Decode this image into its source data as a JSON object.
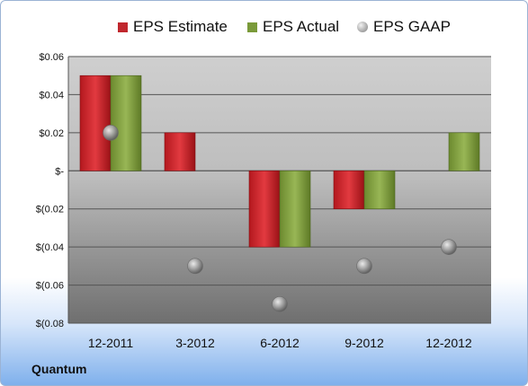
{
  "chart_data": {
    "type": "bar",
    "categories": [
      "12-2011",
      "3-2012",
      "6-2012",
      "9-2012",
      "12-2012"
    ],
    "series": [
      {
        "name": "EPS Estimate",
        "type": "bar",
        "color": "#c0272d",
        "values": [
          0.05,
          0.02,
          -0.04,
          -0.02,
          null
        ]
      },
      {
        "name": "EPS Actual",
        "type": "bar",
        "color": "#7a9a3a",
        "values": [
          0.05,
          null,
          -0.04,
          -0.02,
          0.02
        ]
      },
      {
        "name": "EPS GAAP",
        "type": "scatter",
        "color": "#9a9a9a",
        "values": [
          0.02,
          -0.05,
          -0.07,
          -0.05,
          -0.04
        ]
      }
    ],
    "ylim": [
      -0.08,
      0.06
    ],
    "yticks": [
      {
        "value": 0.06,
        "label": "$0.06"
      },
      {
        "value": 0.04,
        "label": "$0.04"
      },
      {
        "value": 0.02,
        "label": "$0.02"
      },
      {
        "value": 0,
        "label": "$-"
      },
      {
        "value": -0.02,
        "label": "$(0.02"
      },
      {
        "value": -0.04,
        "label": "$(0.04"
      },
      {
        "value": -0.06,
        "label": "$(0.06"
      },
      {
        "value": -0.08,
        "label": "$(0.08"
      }
    ],
    "legend_position": "top",
    "grid": true
  },
  "company_label": "Quantum"
}
